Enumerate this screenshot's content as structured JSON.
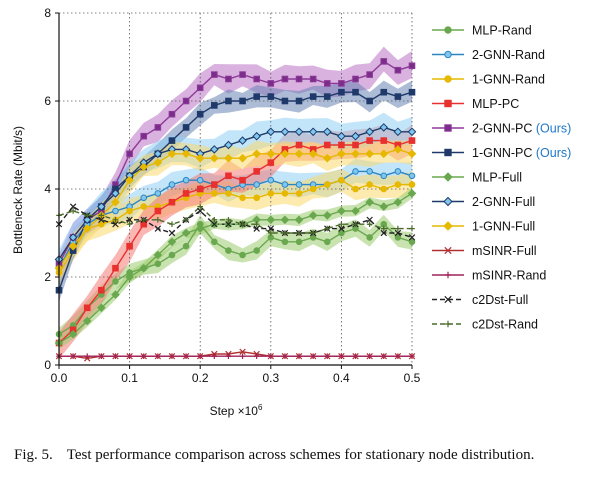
{
  "caption": {
    "label": "Fig. 5.",
    "text": "Test performance comparison across schemes for stationary node distribution."
  },
  "chart_data": {
    "type": "line",
    "xlabel": "Step ×10",
    "xlabel_exp": "6",
    "ylabel": "Bottleneck Rate (Mbit/s)",
    "xlim": [
      0,
      0.5
    ],
    "ylim": [
      0,
      8
    ],
    "xticks": [
      0.0,
      0.1,
      0.2,
      0.3,
      0.4,
      0.5
    ],
    "xtick_labels": [
      "0.0",
      "0.1",
      "0.2",
      "0.3",
      "0.4",
      "0.5"
    ],
    "yticks": [
      0,
      2,
      4,
      6,
      8
    ],
    "ytick_labels": [
      "0",
      "2",
      "4",
      "6",
      "8"
    ],
    "grid": true,
    "legend_position": "right",
    "x": [
      0,
      0.02,
      0.04,
      0.06,
      0.08,
      0.1,
      0.12,
      0.14,
      0.16,
      0.18,
      0.2,
      0.22,
      0.24,
      0.26,
      0.28,
      0.3,
      0.32,
      0.34,
      0.36,
      0.38,
      0.4,
      0.42,
      0.44,
      0.46,
      0.48,
      0.5
    ],
    "series": [
      {
        "name": "MLP-Rand",
        "color": "#6aa84f",
        "marker": "circle",
        "dash": "",
        "band": "#9ccc70",
        "band_width": 0.18,
        "values": [
          0.7,
          0.9,
          1.3,
          1.6,
          1.9,
          2.1,
          2.2,
          2.3,
          2.5,
          2.7,
          3.2,
          2.8,
          2.6,
          2.5,
          2.6,
          2.9,
          2.8,
          2.8,
          2.9,
          2.8,
          3.0,
          3.1,
          2.9,
          3.2,
          2.9,
          2.8
        ]
      },
      {
        "name": "2-GNN-Rand",
        "color": "#2e86c1",
        "fill": "#7ec8f0",
        "marker": "circle",
        "dash": "",
        "band": "#8fd0f5",
        "band_width": 0.25,
        "values": [
          2.2,
          2.8,
          3.2,
          3.4,
          3.5,
          3.6,
          3.8,
          3.9,
          4.1,
          4.2,
          4.2,
          4.1,
          4.0,
          4.1,
          4.1,
          4.2,
          4.1,
          4.1,
          4.1,
          4.1,
          4.2,
          4.4,
          4.4,
          4.3,
          4.4,
          4.3
        ]
      },
      {
        "name": "1-GNN-Rand",
        "color": "#e6b800",
        "marker": "circle",
        "dash": "",
        "band": "#fbd86e",
        "band_width": 0.25,
        "values": [
          2.1,
          2.6,
          3.1,
          3.2,
          3.3,
          3.5,
          3.6,
          3.6,
          3.7,
          3.8,
          3.9,
          3.9,
          3.9,
          3.8,
          3.8,
          3.9,
          3.9,
          3.9,
          4.0,
          4.1,
          4.2,
          4.0,
          4.1,
          4.0,
          4.1,
          4.1
        ]
      },
      {
        "name": "MLP-PC",
        "color": "#e8312f",
        "marker": "square",
        "dash": "",
        "band": "#f47a75",
        "band_width": 0.3,
        "values": [
          0.5,
          0.8,
          1.3,
          1.7,
          2.2,
          2.7,
          3.2,
          3.5,
          3.7,
          3.9,
          4.0,
          4.1,
          4.3,
          4.2,
          4.4,
          4.6,
          4.9,
          5.0,
          4.9,
          5.0,
          5.0,
          5.0,
          5.1,
          5.1,
          5.0,
          5.1
        ]
      },
      {
        "name": "2-GNN-PC",
        "name_suffix": " (Ours)",
        "color": "#8e3a98",
        "fill": "#7a2d8a",
        "marker": "square",
        "dash": "",
        "band": "#b972c4",
        "band_width": 0.28,
        "values": [
          2.3,
          2.9,
          3.3,
          3.5,
          4.1,
          4.8,
          5.2,
          5.4,
          5.7,
          6.0,
          6.3,
          6.6,
          6.5,
          6.6,
          6.5,
          6.4,
          6.5,
          6.5,
          6.5,
          6.4,
          6.4,
          6.5,
          6.6,
          6.9,
          6.7,
          6.8
        ]
      },
      {
        "name": "1-GNN-PC",
        "name_suffix": " (Ours)",
        "color": "#1f3a6a",
        "marker": "square",
        "dash": "",
        "band": "#6a85b5",
        "band_width": 0.22,
        "values": [
          1.7,
          2.6,
          3.3,
          3.6,
          4.0,
          4.3,
          4.5,
          4.8,
          5.1,
          5.4,
          5.7,
          5.9,
          6.0,
          6.0,
          6.1,
          6.1,
          6.0,
          6.0,
          6.1,
          6.1,
          6.2,
          6.2,
          6.0,
          6.2,
          6.1,
          6.2
        ]
      },
      {
        "name": "MLP-Full",
        "color": "#6aa84f",
        "marker": "diamond",
        "dash": "",
        "band": "#9ccc70",
        "band_width": 0.12,
        "values": [
          0.5,
          0.7,
          1.0,
          1.3,
          1.6,
          2.0,
          2.2,
          2.5,
          2.8,
          3.0,
          3.1,
          3.2,
          3.2,
          3.2,
          3.3,
          3.3,
          3.3,
          3.3,
          3.4,
          3.4,
          3.5,
          3.5,
          3.7,
          3.6,
          3.7,
          3.9
        ]
      },
      {
        "name": "2-GNN-Full",
        "color": "#1f3a6a",
        "fill": "#7ec8f0",
        "marker": "diamond",
        "dash": "",
        "band": "#8fd0f5",
        "band_width": 0.28,
        "values": [
          2.4,
          2.9,
          3.3,
          3.6,
          3.9,
          4.3,
          4.6,
          4.8,
          4.9,
          4.9,
          4.8,
          4.9,
          5.0,
          5.1,
          5.2,
          5.3,
          5.3,
          5.3,
          5.3,
          5.3,
          5.2,
          5.2,
          5.3,
          5.4,
          5.3,
          5.3
        ]
      },
      {
        "name": "1-GNN-Full",
        "color": "#e6b800",
        "marker": "diamond",
        "dash": "",
        "band": "#fbd86e",
        "band_width": 0.25,
        "values": [
          2.2,
          2.7,
          3.1,
          3.4,
          3.7,
          4.2,
          4.5,
          4.6,
          4.8,
          4.8,
          4.7,
          4.7,
          4.7,
          4.7,
          4.8,
          4.8,
          4.8,
          4.8,
          4.8,
          4.7,
          4.8,
          4.8,
          4.8,
          4.8,
          4.9,
          4.8
        ]
      },
      {
        "name": "mSINR-Full",
        "color": "#b03030",
        "marker": "x",
        "dash": "",
        "band": "",
        "band_width": 0,
        "values": [
          0.2,
          0.2,
          0.15,
          0.2,
          0.2,
          0.2,
          0.2,
          0.2,
          0.2,
          0.2,
          0.2,
          0.25,
          0.25,
          0.3,
          0.25,
          0.2,
          0.2,
          0.2,
          0.2,
          0.2,
          0.2,
          0.2,
          0.2,
          0.2,
          0.2,
          0.2
        ]
      },
      {
        "name": "mSINR-Rand",
        "color": "#a0225a",
        "marker": "plus",
        "dash": "",
        "band": "",
        "band_width": 0,
        "values": [
          0.2,
          0.2,
          0.2,
          0.2,
          0.2,
          0.2,
          0.2,
          0.2,
          0.2,
          0.2,
          0.2,
          0.2,
          0.2,
          0.2,
          0.2,
          0.2,
          0.2,
          0.2,
          0.2,
          0.2,
          0.2,
          0.2,
          0.2,
          0.2,
          0.2,
          0.2
        ]
      },
      {
        "name": "c2Dst-Full",
        "color": "#222222",
        "marker": "x",
        "dash": "5,3",
        "band": "",
        "band_width": 0,
        "values": [
          3.2,
          3.6,
          3.4,
          3.3,
          3.2,
          3.3,
          3.3,
          3.1,
          3.0,
          3.3,
          3.5,
          3.2,
          3.2,
          3.2,
          3.1,
          3.1,
          3.0,
          3.0,
          3.0,
          3.1,
          3.1,
          3.2,
          3.3,
          3.0,
          3.0,
          2.9
        ]
      },
      {
        "name": "c2Dst-Rand",
        "color": "#4a6b2a",
        "marker": "plus",
        "dash": "5,3",
        "band": "",
        "band_width": 0,
        "values": [
          3.4,
          3.5,
          3.4,
          3.4,
          3.3,
          3.2,
          3.3,
          3.3,
          3.2,
          3.3,
          3.6,
          3.3,
          3.3,
          3.2,
          3.2,
          3.0,
          3.0,
          3.0,
          3.0,
          3.1,
          3.2,
          3.2,
          3.2,
          3.1,
          3.1,
          3.1
        ]
      }
    ]
  }
}
